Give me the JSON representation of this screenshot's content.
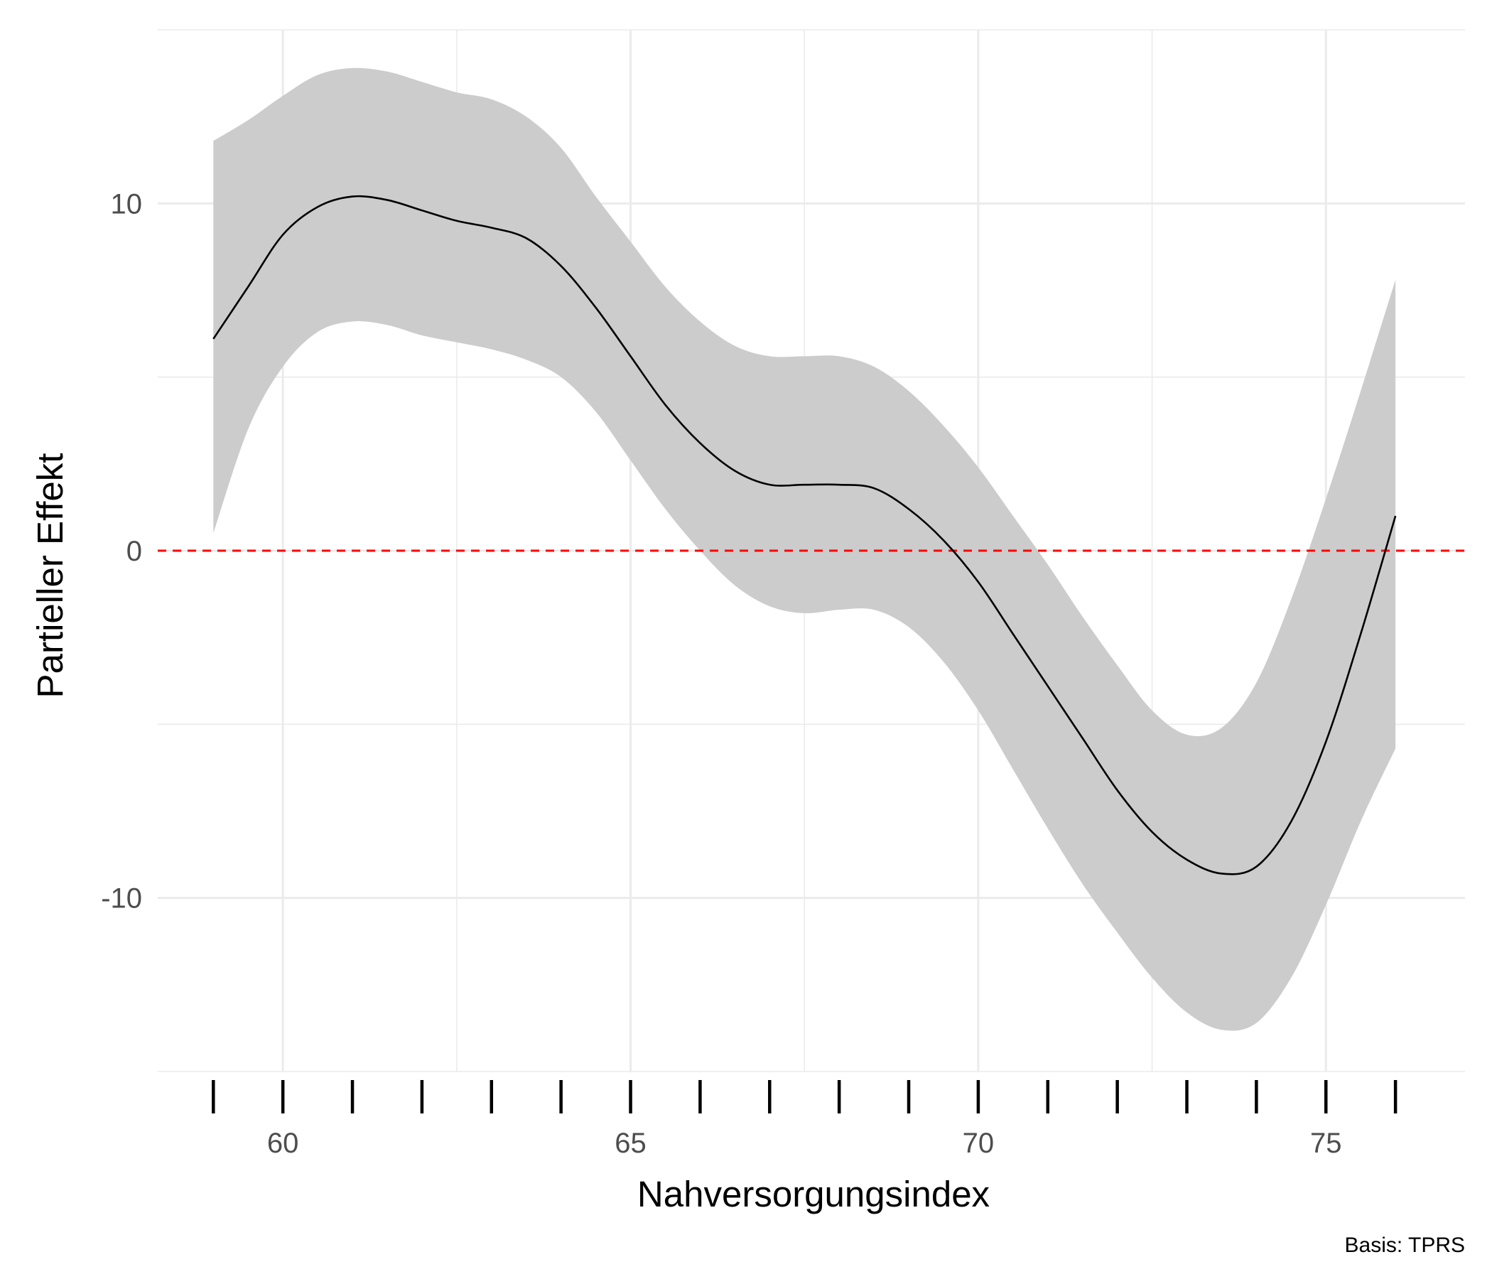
{
  "chart_data": {
    "type": "line",
    "xlabel": "Nahversorgungsindex",
    "ylabel": "Partieller Effekt",
    "caption": "Basis: TPRS",
    "xlim": [
      58.2,
      77
    ],
    "ylim": [
      -15,
      15
    ],
    "x_ticks": [
      60,
      65,
      70,
      75
    ],
    "x_tick_labels": [
      "60",
      "65",
      "70",
      "75"
    ],
    "y_ticks": [
      -10,
      0,
      10
    ],
    "y_tick_labels": [
      "-10",
      "0",
      "10"
    ],
    "grid": true,
    "reference_line": {
      "y": 0,
      "style": "dashed",
      "color": "#ff0000"
    },
    "rug": [
      59,
      60,
      61,
      62,
      63,
      64,
      65,
      66,
      67,
      68,
      69,
      70,
      71,
      72,
      73,
      74,
      75,
      76
    ],
    "series": [
      {
        "kind": "ribbon",
        "color": "#cccccc",
        "x": [
          59,
          59.5,
          60,
          60.5,
          61,
          61.5,
          62,
          62.5,
          63,
          63.5,
          64,
          64.5,
          65,
          65.5,
          66,
          66.5,
          67,
          67.5,
          68,
          68.5,
          69,
          69.5,
          70,
          70.5,
          71,
          71.5,
          72,
          72.5,
          73,
          73.5,
          74,
          74.5,
          75,
          75.5,
          76
        ],
        "lower": [
          0.5,
          3.5,
          5.3,
          6.3,
          6.6,
          6.5,
          6.2,
          6.0,
          5.8,
          5.5,
          5.0,
          4.0,
          2.6,
          1.2,
          0.0,
          -1.0,
          -1.6,
          -1.8,
          -1.7,
          -1.7,
          -2.2,
          -3.2,
          -4.6,
          -6.3,
          -8.0,
          -9.6,
          -11.0,
          -12.3,
          -13.3,
          -13.8,
          -13.6,
          -12.3,
          -10.2,
          -7.8,
          -5.7
        ],
        "upper": [
          11.8,
          12.4,
          13.1,
          13.7,
          13.9,
          13.8,
          13.5,
          13.2,
          13.0,
          12.5,
          11.6,
          10.2,
          8.9,
          7.6,
          6.6,
          5.9,
          5.6,
          5.6,
          5.6,
          5.3,
          4.6,
          3.6,
          2.4,
          1.0,
          -0.4,
          -1.9,
          -3.3,
          -4.6,
          -5.3,
          -5.1,
          -3.8,
          -1.4,
          1.5,
          4.6,
          7.8
        ]
      },
      {
        "kind": "line",
        "color": "#000000",
        "x": [
          59,
          59.5,
          60,
          60.5,
          61,
          61.5,
          62,
          62.5,
          63,
          63.5,
          64,
          64.5,
          65,
          65.5,
          66,
          66.5,
          67,
          67.5,
          68,
          68.5,
          69,
          69.5,
          70,
          70.5,
          71,
          71.5,
          72,
          72.5,
          73,
          73.5,
          74,
          74.5,
          75,
          75.5,
          76
        ],
        "y": [
          6.1,
          7.6,
          9.1,
          9.9,
          10.2,
          10.1,
          9.8,
          9.5,
          9.3,
          9.0,
          8.2,
          7.0,
          5.6,
          4.2,
          3.1,
          2.3,
          1.9,
          1.9,
          1.9,
          1.8,
          1.2,
          0.3,
          -0.9,
          -2.4,
          -3.9,
          -5.4,
          -6.9,
          -8.1,
          -8.9,
          -9.3,
          -9.1,
          -7.8,
          -5.5,
          -2.4,
          1.0
        ]
      }
    ]
  }
}
